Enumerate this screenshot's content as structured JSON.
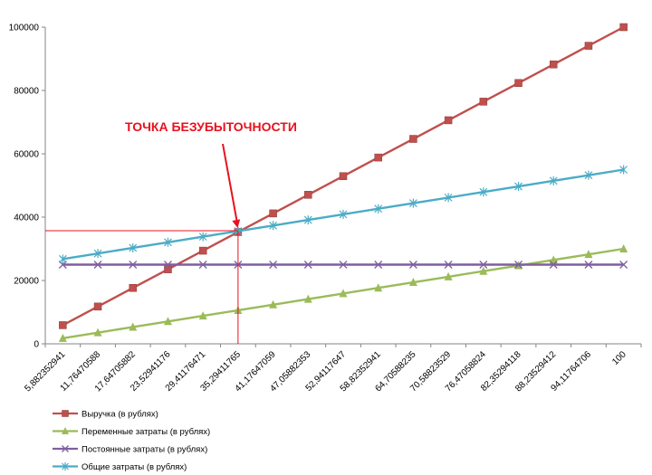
{
  "chart_data": {
    "type": "line",
    "ylim": [
      0,
      100000
    ],
    "yticks": [
      0,
      20000,
      40000,
      60000,
      80000,
      100000
    ],
    "ytick_labels": [
      "0",
      "20000",
      "40000",
      "60000",
      "80000",
      "100000"
    ],
    "categories": [
      "5,882352941",
      "11,76470588",
      "17,64705882",
      "23,52941176",
      "29,41176471",
      "35,29411765",
      "41,17647059",
      "47,05882353",
      "52,94117647",
      "58,82352941",
      "64,70588235",
      "70,58823529",
      "76,47058824",
      "82,35294118",
      "88,23529412",
      "94,11764706",
      "100"
    ],
    "x_numeric": [
      5.882352941,
      11.76470588,
      17.64705882,
      23.52941176,
      29.41176471,
      35.29411765,
      41.17647059,
      47.05882353,
      52.94117647,
      58.82352941,
      64.70588235,
      70.58823529,
      76.47058824,
      82.35294118,
      88.23529412,
      94.11764706,
      100
    ],
    "gridlines": false,
    "legend_position": "bottom-left",
    "series": [
      {
        "name": "Выручка (в рублях)",
        "color": "#c0504d",
        "marker": "square",
        "values": [
          5882,
          11765,
          17647,
          23529,
          29412,
          35294,
          41176,
          47059,
          52941,
          58824,
          64706,
          70588,
          76471,
          82353,
          88235,
          94118,
          100000
        ]
      },
      {
        "name": "Переменные затраты (в рублях)",
        "color": "#9bbb59",
        "marker": "triangle",
        "values": [
          1765,
          3529,
          5294,
          7059,
          8824,
          10588,
          12353,
          14118,
          15882,
          17647,
          19412,
          21176,
          22941,
          24706,
          26471,
          28235,
          30000
        ]
      },
      {
        "name": "Постоянные затраты (в рублях)",
        "color": "#7f5fa0",
        "marker": "x",
        "values": [
          25000,
          25000,
          25000,
          25000,
          25000,
          25000,
          25000,
          25000,
          25000,
          25000,
          25000,
          25000,
          25000,
          25000,
          25000,
          25000,
          25000
        ]
      },
      {
        "name": "Общие затраты (в рублях)",
        "color": "#4bacc6",
        "marker": "star",
        "values": [
          26765,
          28529,
          30294,
          32059,
          33824,
          35588,
          37353,
          39118,
          40882,
          42647,
          44412,
          46176,
          47941,
          49706,
          51471,
          53235,
          55000
        ]
      }
    ],
    "annotation": {
      "text": "ТОЧКА БЕЗУБЫТОЧНОСТИ",
      "color": "#e8111f",
      "point": {
        "category_index": 5,
        "value": 35700
      }
    }
  }
}
